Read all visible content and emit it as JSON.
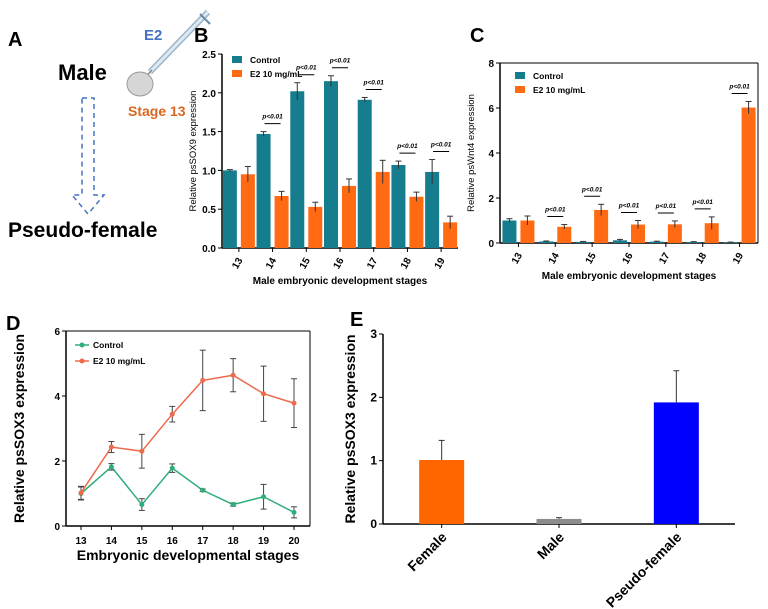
{
  "panel_a": {
    "label": "A",
    "male": "Male",
    "treatment": "E2",
    "stage": "Stage 13",
    "result": "Pseudo-female",
    "colors": {
      "treatment": "#4472c4",
      "stage": "#d9661f",
      "arrow": "#4472c4"
    }
  },
  "chart_data": [
    {
      "panel": "B",
      "type": "bar",
      "ylabel": "Relative psSOX9 expression",
      "xlabel": "Male embryonic development stages",
      "categories": [
        "13",
        "14",
        "15",
        "16",
        "17",
        "18",
        "19"
      ],
      "ylim": [
        0,
        2.5
      ],
      "yticks": [
        "0.0",
        "0.5",
        "1.0",
        "1.5",
        "2.0",
        "2.5"
      ],
      "legend": "top-left",
      "series": [
        {
          "name": "Control",
          "color": "#167d8f",
          "values": [
            1.0,
            1.47,
            2.02,
            2.15,
            1.91,
            1.07,
            0.98
          ],
          "errors": [
            0.01,
            0.03,
            0.11,
            0.07,
            0.03,
            0.05,
            0.16
          ]
        },
        {
          "name": "E2 10 mg/mL",
          "color": "#ff6a13",
          "values": [
            0.95,
            0.67,
            0.53,
            0.8,
            0.98,
            0.66,
            0.33
          ],
          "errors": [
            0.1,
            0.06,
            0.06,
            0.09,
            0.15,
            0.06,
            0.08
          ]
        }
      ],
      "annotations": [
        {
          "category": "14",
          "text": "p<0.01"
        },
        {
          "category": "15",
          "text": "p<0.01"
        },
        {
          "category": "16",
          "text": "p<0.01"
        },
        {
          "category": "17",
          "text": "p<0.01"
        },
        {
          "category": "18",
          "text": "p<0.01"
        },
        {
          "category": "19",
          "text": "p<0.01"
        }
      ]
    },
    {
      "panel": "C",
      "type": "bar",
      "ylabel": "Relative psWnt4 expression",
      "xlabel": "Male embryonic development stages",
      "categories": [
        "13",
        "14",
        "15",
        "16",
        "17",
        "18",
        "19"
      ],
      "ylim": [
        0,
        8
      ],
      "yticks": [
        "0",
        "2",
        "4",
        "6",
        "8"
      ],
      "legend": "top-left",
      "series": [
        {
          "name": "Control",
          "color": "#167d8f",
          "values": [
            1.0,
            0.07,
            0.05,
            0.12,
            0.06,
            0.04,
            0.03
          ],
          "errors": [
            0.08,
            0.02,
            0.02,
            0.04,
            0.02,
            0.02,
            0.01
          ]
        },
        {
          "name": "E2 10 mg/mL",
          "color": "#ff6a13",
          "values": [
            1.0,
            0.72,
            1.47,
            0.82,
            0.83,
            0.88,
            6.02
          ],
          "errors": [
            0.2,
            0.1,
            0.25,
            0.18,
            0.15,
            0.28,
            0.27
          ]
        }
      ],
      "annotations": [
        {
          "category": "14",
          "text": "p<0.01"
        },
        {
          "category": "15",
          "text": "p<0.01"
        },
        {
          "category": "16",
          "text": "p<0.01"
        },
        {
          "category": "17",
          "text": "p<0.01"
        },
        {
          "category": "18",
          "text": "p<0.01"
        },
        {
          "category": "19",
          "text": "p<0.01"
        }
      ]
    },
    {
      "panel": "D",
      "type": "line",
      "ylabel": "Relative psSOX3 expression",
      "xlabel": "Embryonic developmental stages",
      "categories": [
        "13",
        "14",
        "15",
        "16",
        "17",
        "18",
        "19",
        "20"
      ],
      "ylim": [
        0,
        6
      ],
      "yticks": [
        "0",
        "2",
        "4",
        "6"
      ],
      "legend": "top-left",
      "series": [
        {
          "name": "Control",
          "color": "#2fae7a",
          "values": [
            1.0,
            1.82,
            0.66,
            1.78,
            1.1,
            0.66,
            0.9,
            0.42
          ],
          "errors": [
            0.2,
            0.1,
            0.18,
            0.13,
            0.04,
            0.05,
            0.38,
            0.17
          ]
        },
        {
          "name": "E2 10 mg/mL",
          "color": "#ee6a4c",
          "values": [
            1.02,
            2.43,
            2.3,
            3.44,
            4.48,
            4.64,
            4.07,
            3.78
          ],
          "errors": [
            0.2,
            0.17,
            0.52,
            0.24,
            0.93,
            0.51,
            0.85,
            0.75
          ]
        }
      ]
    },
    {
      "panel": "E",
      "type": "bar",
      "ylabel": "Relative psSOX3 expression",
      "categories": [
        "Female",
        "Male",
        "Pseudo-female"
      ],
      "ylim": [
        0,
        3
      ],
      "yticks": [
        "0",
        "1",
        "2",
        "3"
      ],
      "series": [
        {
          "colors": [
            "#ff6600",
            "#8c8c8c",
            "#0000ff"
          ],
          "values": [
            1.01,
            0.08,
            1.92
          ],
          "errors": [
            0.31,
            0.02,
            0.5
          ]
        }
      ]
    }
  ]
}
